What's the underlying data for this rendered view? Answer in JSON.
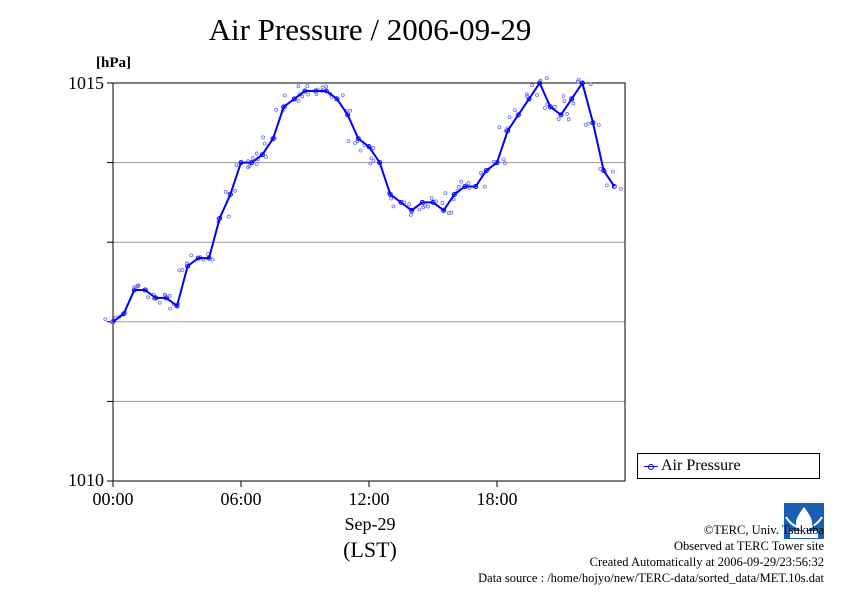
{
  "chart_data": {
    "type": "line",
    "title": "Air Pressure / 2006-09-29",
    "ylabel": "[hPa]",
    "xlabel": "Sep-29",
    "xlabel_sub": "(LST)",
    "ylim": [
      1010,
      1015
    ],
    "yticks": [
      1010,
      1011,
      1012,
      1013,
      1014,
      1015
    ],
    "ytick_labels_shown": [
      "1015",
      "1010"
    ],
    "xlim": [
      0,
      24
    ],
    "xticks": [
      0,
      6,
      12,
      18
    ],
    "xtick_labels": [
      "00:00",
      "06:00",
      "12:00",
      "18:00"
    ],
    "grid": "horizontal",
    "legend_position": "right",
    "series": [
      {
        "name": "Air Pressure",
        "color": "#0000ff",
        "x": [
          0,
          0.5,
          1,
          1.5,
          2,
          2.5,
          3,
          3.5,
          4,
          4.5,
          5,
          5.5,
          6,
          6.5,
          7,
          7.5,
          8,
          8.5,
          9,
          9.5,
          10,
          10.5,
          11,
          11.5,
          12,
          12.5,
          13,
          13.5,
          14,
          14.5,
          15,
          15.5,
          16,
          16.5,
          17,
          17.5,
          18,
          18.5,
          19,
          19.5,
          20,
          20.5,
          21,
          21.5,
          22,
          22.5,
          23,
          23.5
        ],
        "y": [
          1012.0,
          1012.1,
          1012.4,
          1012.4,
          1012.3,
          1012.3,
          1012.2,
          1012.7,
          1012.8,
          1012.8,
          1013.3,
          1013.6,
          1014.0,
          1014.0,
          1014.1,
          1014.3,
          1014.7,
          1014.8,
          1014.9,
          1014.9,
          1014.9,
          1014.8,
          1014.6,
          1014.3,
          1014.2,
          1014.0,
          1013.6,
          1013.5,
          1013.4,
          1013.5,
          1013.5,
          1013.4,
          1013.6,
          1013.7,
          1013.7,
          1013.9,
          1014.0,
          1014.4,
          1014.6,
          1014.8,
          1015.0,
          1014.7,
          1014.6,
          1014.8,
          1015.0,
          1014.5,
          1013.9,
          1013.7
        ]
      }
    ]
  },
  "legend": {
    "label": "Air Pressure"
  },
  "credits": {
    "line1": "©TERC, Univ. Tsukuba",
    "line2": "Observed at TERC Tower site",
    "line3": "Created Automatically at 2006-09-29/23:56:32",
    "line4": "Data source : /home/hojyo/new/TERC-data/sorted_data/MET.10s.dat"
  },
  "logo": {
    "text": "TERC"
  }
}
